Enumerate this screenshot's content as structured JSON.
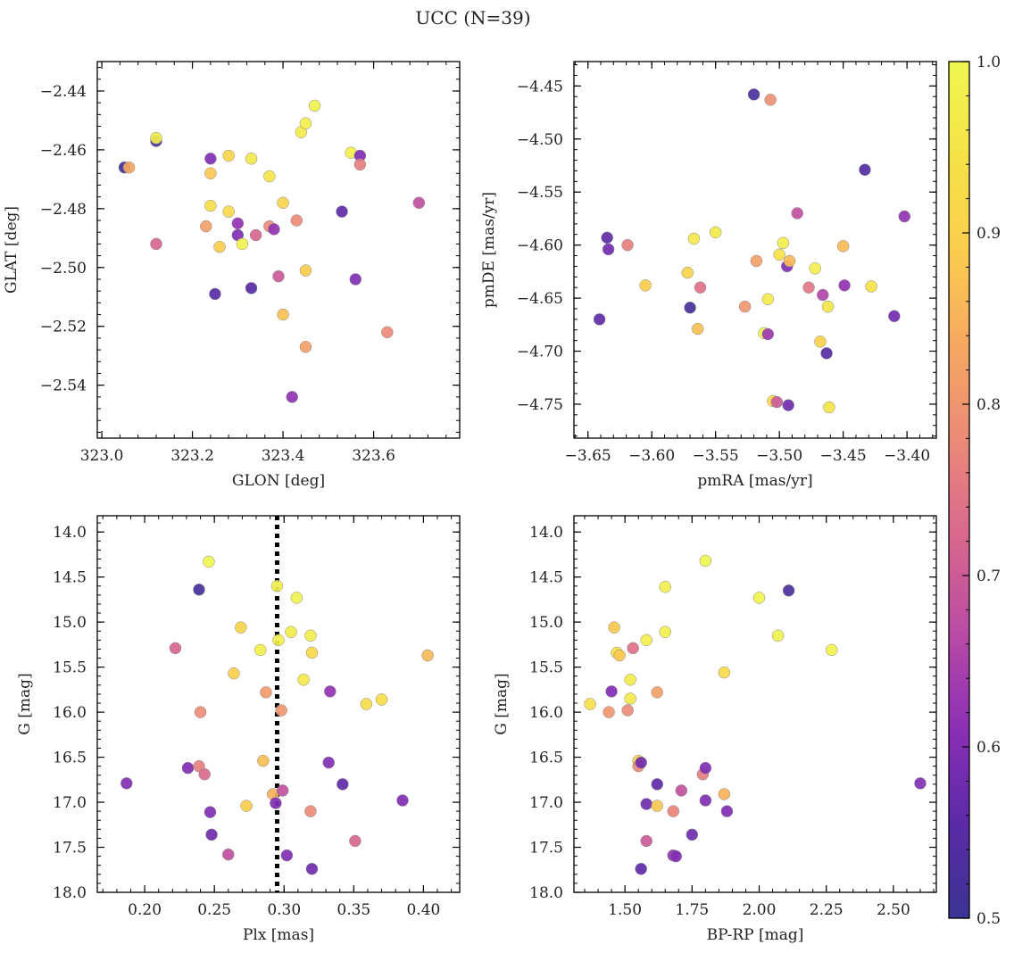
{
  "suptitle": "UCC (N=39)",
  "colorbar": {
    "min": 0.5,
    "max": 1.0,
    "ticks": [
      "0.5",
      "0.6",
      "0.7",
      "0.8",
      "0.9",
      "1.0"
    ],
    "colormap": "plasma (truncated)",
    "colors": [
      "#3b3493",
      "#5b2aa6",
      "#8a2fb6",
      "#b84aa6",
      "#d7668f",
      "#ec8a78",
      "#f6a861",
      "#fbcd4d",
      "#f5e348",
      "#f0f650"
    ]
  },
  "chart_data": [
    {
      "type": "scatter",
      "id": "glon-glat",
      "xlabel": "GLON [deg]",
      "ylabel": "GLAT [deg]",
      "xlim": [
        322.99,
        323.79
      ],
      "ylim": [
        -2.558,
        -2.43
      ],
      "xticks": [
        "323.0",
        "323.2",
        "323.4",
        "323.6"
      ],
      "yticks": [
        "−2.44",
        "−2.46",
        "−2.48",
        "−2.50",
        "−2.52",
        "−2.54"
      ],
      "points": [
        {
          "x": 323.05,
          "y": -2.466,
          "c": 0.52
        },
        {
          "x": 323.06,
          "y": -2.466,
          "c": 0.83
        },
        {
          "x": 323.12,
          "y": -2.457,
          "c": 0.52
        },
        {
          "x": 323.12,
          "y": -2.456,
          "c": 0.97
        },
        {
          "x": 323.12,
          "y": -2.492,
          "c": 0.72
        },
        {
          "x": 323.23,
          "y": -2.486,
          "c": 0.82
        },
        {
          "x": 323.24,
          "y": -2.463,
          "c": 0.6
        },
        {
          "x": 323.24,
          "y": -2.468,
          "c": 0.88
        },
        {
          "x": 323.24,
          "y": -2.479,
          "c": 0.93
        },
        {
          "x": 323.25,
          "y": -2.509,
          "c": 0.55
        },
        {
          "x": 323.26,
          "y": -2.493,
          "c": 0.89
        },
        {
          "x": 323.28,
          "y": -2.462,
          "c": 0.91
        },
        {
          "x": 323.28,
          "y": -2.481,
          "c": 0.92
        },
        {
          "x": 323.3,
          "y": -2.485,
          "c": 0.62
        },
        {
          "x": 323.3,
          "y": -2.489,
          "c": 0.6
        },
        {
          "x": 323.31,
          "y": -2.492,
          "c": 0.99
        },
        {
          "x": 323.33,
          "y": -2.463,
          "c": 0.96
        },
        {
          "x": 323.33,
          "y": -2.507,
          "c": 0.55
        },
        {
          "x": 323.34,
          "y": -2.489,
          "c": 0.72
        },
        {
          "x": 323.37,
          "y": -2.486,
          "c": 0.78
        },
        {
          "x": 323.37,
          "y": -2.469,
          "c": 0.95
        },
        {
          "x": 323.38,
          "y": -2.487,
          "c": 0.62
        },
        {
          "x": 323.39,
          "y": -2.503,
          "c": 0.7
        },
        {
          "x": 323.4,
          "y": -2.478,
          "c": 0.91
        },
        {
          "x": 323.4,
          "y": -2.516,
          "c": 0.87
        },
        {
          "x": 323.42,
          "y": -2.544,
          "c": 0.62
        },
        {
          "x": 323.43,
          "y": -2.484,
          "c": 0.78
        },
        {
          "x": 323.44,
          "y": -2.454,
          "c": 0.97
        },
        {
          "x": 323.45,
          "y": -2.451,
          "c": 0.98
        },
        {
          "x": 323.45,
          "y": -2.501,
          "c": 0.89
        },
        {
          "x": 323.45,
          "y": -2.527,
          "c": 0.82
        },
        {
          "x": 323.47,
          "y": -2.445,
          "c": 0.99
        },
        {
          "x": 323.53,
          "y": -2.481,
          "c": 0.56
        },
        {
          "x": 323.55,
          "y": -2.461,
          "c": 0.98
        },
        {
          "x": 323.56,
          "y": -2.504,
          "c": 0.6
        },
        {
          "x": 323.57,
          "y": -2.462,
          "c": 0.6
        },
        {
          "x": 323.57,
          "y": -2.465,
          "c": 0.76
        },
        {
          "x": 323.63,
          "y": -2.522,
          "c": 0.78
        },
        {
          "x": 323.7,
          "y": -2.478,
          "c": 0.68
        }
      ]
    },
    {
      "type": "scatter",
      "id": "pmra-pmde",
      "xlabel": "pmRA [mas/yr]",
      "ylabel": "pmDE [mas/yr]",
      "xlim": [
        -3.661,
        -3.377
      ],
      "ylim": [
        -4.782,
        -4.427
      ],
      "xticks": [
        "−3.65",
        "−3.60",
        "−3.55",
        "−3.50",
        "−3.45",
        "−3.40"
      ],
      "yticks": [
        "−4.45",
        "−4.50",
        "−4.55",
        "−4.60",
        "−4.65",
        "−4.70",
        "−4.75"
      ],
      "points": [
        {
          "x": -3.641,
          "y": -4.67,
          "c": 0.56
        },
        {
          "x": -3.635,
          "y": -4.593,
          "c": 0.56
        },
        {
          "x": -3.634,
          "y": -4.604,
          "c": 0.58
        },
        {
          "x": -3.619,
          "y": -4.6,
          "c": 0.76
        },
        {
          "x": -3.605,
          "y": -4.638,
          "c": 0.89
        },
        {
          "x": -3.572,
          "y": -4.626,
          "c": 0.91
        },
        {
          "x": -3.57,
          "y": -4.659,
          "c": 0.52
        },
        {
          "x": -3.567,
          "y": -4.594,
          "c": 0.96
        },
        {
          "x": -3.564,
          "y": -4.679,
          "c": 0.87
        },
        {
          "x": -3.562,
          "y": -4.64,
          "c": 0.74
        },
        {
          "x": -3.55,
          "y": -4.588,
          "c": 0.97
        },
        {
          "x": -3.527,
          "y": -4.658,
          "c": 0.8
        },
        {
          "x": -3.52,
          "y": -4.458,
          "c": 0.53
        },
        {
          "x": -3.518,
          "y": -4.615,
          "c": 0.82
        },
        {
          "x": -3.512,
          "y": -4.683,
          "c": 1.0
        },
        {
          "x": -3.509,
          "y": -4.651,
          "c": 0.97
        },
        {
          "x": -3.509,
          "y": -4.684,
          "c": 0.63
        },
        {
          "x": -3.507,
          "y": -4.463,
          "c": 0.79
        },
        {
          "x": -3.505,
          "y": -4.747,
          "c": 0.92
        },
        {
          "x": -3.502,
          "y": -4.748,
          "c": 0.7
        },
        {
          "x": -3.5,
          "y": -4.609,
          "c": 0.94
        },
        {
          "x": -3.497,
          "y": -4.598,
          "c": 0.98
        },
        {
          "x": -3.494,
          "y": -4.62,
          "c": 0.6
        },
        {
          "x": -3.493,
          "y": -4.751,
          "c": 0.58
        },
        {
          "x": -3.492,
          "y": -4.615,
          "c": 0.86
        },
        {
          "x": -3.486,
          "y": -4.57,
          "c": 0.68
        },
        {
          "x": -3.477,
          "y": -4.64,
          "c": 0.75
        },
        {
          "x": -3.472,
          "y": -4.622,
          "c": 0.98
        },
        {
          "x": -3.468,
          "y": -4.691,
          "c": 0.9
        },
        {
          "x": -3.466,
          "y": -4.647,
          "c": 0.66
        },
        {
          "x": -3.463,
          "y": -4.702,
          "c": 0.55
        },
        {
          "x": -3.462,
          "y": -4.658,
          "c": 0.95
        },
        {
          "x": -3.461,
          "y": -4.753,
          "c": 0.95
        },
        {
          "x": -3.45,
          "y": -4.601,
          "c": 0.86
        },
        {
          "x": -3.449,
          "y": -4.638,
          "c": 0.62
        },
        {
          "x": -3.433,
          "y": -4.529,
          "c": 0.54
        },
        {
          "x": -3.428,
          "y": -4.639,
          "c": 0.94
        },
        {
          "x": -3.41,
          "y": -4.667,
          "c": 0.58
        },
        {
          "x": -3.402,
          "y": -4.573,
          "c": 0.62
        }
      ]
    },
    {
      "type": "scatter",
      "id": "plx-g",
      "xlabel": "Plx [mas]",
      "ylabel": "G [mag]",
      "xlim": [
        0.166,
        0.426
      ],
      "ylim": [
        18.0,
        13.82
      ],
      "xticks": [
        "0.20",
        "0.25",
        "0.30",
        "0.35",
        "0.40"
      ],
      "yticks": [
        "14.0",
        "14.5",
        "15.0",
        "15.5",
        "16.0",
        "16.5",
        "17.0",
        "17.5",
        "18.0"
      ],
      "vline": 0.295,
      "points": [
        {
          "x": 0.187,
          "y": 16.79,
          "c": 0.6
        },
        {
          "x": 0.222,
          "y": 15.29,
          "c": 0.72
        },
        {
          "x": 0.231,
          "y": 16.62,
          "c": 0.6
        },
        {
          "x": 0.239,
          "y": 14.64,
          "c": 0.52
        },
        {
          "x": 0.239,
          "y": 16.6,
          "c": 0.76
        },
        {
          "x": 0.24,
          "y": 16.0,
          "c": 0.78
        },
        {
          "x": 0.243,
          "y": 16.69,
          "c": 0.73
        },
        {
          "x": 0.246,
          "y": 14.33,
          "c": 1.0
        },
        {
          "x": 0.247,
          "y": 17.11,
          "c": 0.6
        },
        {
          "x": 0.248,
          "y": 17.36,
          "c": 0.58
        },
        {
          "x": 0.26,
          "y": 17.58,
          "c": 0.68
        },
        {
          "x": 0.264,
          "y": 15.57,
          "c": 0.9
        },
        {
          "x": 0.269,
          "y": 15.06,
          "c": 0.91
        },
        {
          "x": 0.273,
          "y": 17.04,
          "c": 0.89
        },
        {
          "x": 0.283,
          "y": 15.31,
          "c": 0.98
        },
        {
          "x": 0.285,
          "y": 16.54,
          "c": 0.87
        },
        {
          "x": 0.287,
          "y": 15.78,
          "c": 0.81
        },
        {
          "x": 0.292,
          "y": 16.91,
          "c": 0.85
        },
        {
          "x": 0.294,
          "y": 17.01,
          "c": 0.6
        },
        {
          "x": 0.295,
          "y": 14.6,
          "c": 0.98
        },
        {
          "x": 0.296,
          "y": 15.2,
          "c": 0.98
        },
        {
          "x": 0.298,
          "y": 15.98,
          "c": 0.8
        },
        {
          "x": 0.299,
          "y": 16.87,
          "c": 0.68
        },
        {
          "x": 0.302,
          "y": 17.59,
          "c": 0.6
        },
        {
          "x": 0.305,
          "y": 15.11,
          "c": 0.97
        },
        {
          "x": 0.309,
          "y": 14.73,
          "c": 0.99
        },
        {
          "x": 0.314,
          "y": 15.64,
          "c": 0.96
        },
        {
          "x": 0.319,
          "y": 17.1,
          "c": 0.78
        },
        {
          "x": 0.319,
          "y": 15.15,
          "c": 0.98
        },
        {
          "x": 0.32,
          "y": 17.74,
          "c": 0.58
        },
        {
          "x": 0.32,
          "y": 15.34,
          "c": 0.92
        },
        {
          "x": 0.332,
          "y": 16.56,
          "c": 0.6
        },
        {
          "x": 0.333,
          "y": 15.77,
          "c": 0.62
        },
        {
          "x": 0.342,
          "y": 16.8,
          "c": 0.56
        },
        {
          "x": 0.351,
          "y": 17.43,
          "c": 0.72
        },
        {
          "x": 0.359,
          "y": 15.91,
          "c": 0.93
        },
        {
          "x": 0.37,
          "y": 15.86,
          "c": 0.93
        },
        {
          "x": 0.385,
          "y": 16.98,
          "c": 0.6
        },
        {
          "x": 0.403,
          "y": 15.37,
          "c": 0.86
        }
      ]
    },
    {
      "type": "scatter",
      "id": "bprp-g",
      "xlabel": "BP-RP [mag]",
      "ylabel": "G [mag]",
      "xlim": [
        1.31,
        2.66
      ],
      "ylim": [
        18.0,
        13.82
      ],
      "xticks": [
        "1.50",
        "1.75",
        "2.00",
        "2.25",
        "2.50"
      ],
      "yticks": [
        "14.0",
        "14.5",
        "15.0",
        "15.5",
        "16.0",
        "16.5",
        "17.0",
        "17.5",
        "18.0"
      ],
      "points": [
        {
          "x": 1.37,
          "y": 15.91,
          "c": 0.93
        },
        {
          "x": 1.44,
          "y": 16.0,
          "c": 0.8
        },
        {
          "x": 1.45,
          "y": 15.77,
          "c": 0.6
        },
        {
          "x": 1.46,
          "y": 15.06,
          "c": 0.88
        },
        {
          "x": 1.47,
          "y": 15.34,
          "c": 0.94
        },
        {
          "x": 1.48,
          "y": 15.37,
          "c": 0.88
        },
        {
          "x": 1.51,
          "y": 15.98,
          "c": 0.78
        },
        {
          "x": 1.52,
          "y": 15.64,
          "c": 0.97
        },
        {
          "x": 1.52,
          "y": 15.85,
          "c": 0.96
        },
        {
          "x": 1.53,
          "y": 15.29,
          "c": 0.74
        },
        {
          "x": 1.55,
          "y": 16.54,
          "c": 0.9
        },
        {
          "x": 1.55,
          "y": 16.6,
          "c": 0.78
        },
        {
          "x": 1.56,
          "y": 16.56,
          "c": 0.58
        },
        {
          "x": 1.56,
          "y": 17.74,
          "c": 0.56
        },
        {
          "x": 1.58,
          "y": 15.2,
          "c": 0.98
        },
        {
          "x": 1.58,
          "y": 17.02,
          "c": 0.58
        },
        {
          "x": 1.58,
          "y": 17.43,
          "c": 0.7
        },
        {
          "x": 1.62,
          "y": 16.8,
          "c": 0.56
        },
        {
          "x": 1.62,
          "y": 17.04,
          "c": 0.88
        },
        {
          "x": 1.62,
          "y": 15.78,
          "c": 0.82
        },
        {
          "x": 1.65,
          "y": 14.61,
          "c": 0.98
        },
        {
          "x": 1.65,
          "y": 15.11,
          "c": 0.98
        },
        {
          "x": 1.68,
          "y": 17.59,
          "c": 0.62
        },
        {
          "x": 1.68,
          "y": 17.1,
          "c": 0.77
        },
        {
          "x": 1.69,
          "y": 17.6,
          "c": 0.6
        },
        {
          "x": 1.71,
          "y": 16.87,
          "c": 0.68
        },
        {
          "x": 1.75,
          "y": 17.36,
          "c": 0.58
        },
        {
          "x": 1.79,
          "y": 16.69,
          "c": 0.76
        },
        {
          "x": 1.8,
          "y": 16.98,
          "c": 0.6
        },
        {
          "x": 1.8,
          "y": 16.62,
          "c": 0.6
        },
        {
          "x": 1.8,
          "y": 14.32,
          "c": 1.0
        },
        {
          "x": 1.87,
          "y": 16.91,
          "c": 0.85
        },
        {
          "x": 1.87,
          "y": 15.56,
          "c": 0.92
        },
        {
          "x": 1.88,
          "y": 17.1,
          "c": 0.6
        },
        {
          "x": 2.0,
          "y": 14.73,
          "c": 0.99
        },
        {
          "x": 2.07,
          "y": 15.15,
          "c": 0.99
        },
        {
          "x": 2.11,
          "y": 14.65,
          "c": 0.53
        },
        {
          "x": 2.27,
          "y": 15.31,
          "c": 0.99
        },
        {
          "x": 2.6,
          "y": 16.79,
          "c": 0.6
        }
      ]
    }
  ]
}
